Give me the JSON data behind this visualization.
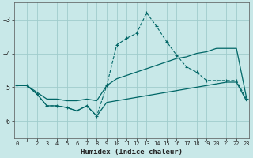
{
  "xlabel": "Humidex (Indice chaleur)",
  "bg_color": "#c8e8e8",
  "grid_color": "#a0cccc",
  "line_color": "#006666",
  "x_ticks": [
    0,
    1,
    2,
    3,
    4,
    5,
    6,
    7,
    8,
    9,
    10,
    11,
    12,
    13,
    14,
    15,
    16,
    17,
    18,
    19,
    20,
    21,
    22,
    23
  ],
  "y_ticks": [
    -6,
    -5,
    -4,
    -3
  ],
  "ylim": [
    -6.5,
    -2.5
  ],
  "xlim": [
    -0.3,
    23.3
  ],
  "line_dashed_markers_x": [
    0,
    1,
    2,
    3,
    4,
    5,
    6,
    7,
    8,
    9,
    10,
    11,
    12,
    13,
    14,
    15,
    16,
    17,
    18,
    19,
    20,
    21,
    22,
    23
  ],
  "line_dashed_markers_y": [
    -4.95,
    -4.95,
    -5.2,
    -5.55,
    -5.55,
    -5.6,
    -5.7,
    -5.55,
    -5.85,
    -4.95,
    -3.75,
    -3.55,
    -3.4,
    -2.8,
    -3.2,
    -3.65,
    -4.05,
    -4.4,
    -4.55,
    -4.8,
    -4.8,
    -4.8,
    -4.8,
    -5.35
  ],
  "line_solid_upper_x": [
    0,
    1,
    2,
    3,
    4,
    5,
    6,
    7,
    8,
    9,
    10,
    11,
    12,
    13,
    14,
    15,
    16,
    17,
    18,
    19,
    20,
    21,
    22,
    23
  ],
  "line_solid_upper_y": [
    -4.95,
    -4.95,
    -5.15,
    -5.35,
    -5.35,
    -5.4,
    -5.4,
    -5.35,
    -5.4,
    -4.95,
    -4.75,
    -4.65,
    -4.55,
    -4.45,
    -4.35,
    -4.25,
    -4.15,
    -4.1,
    -4.0,
    -3.95,
    -3.85,
    -3.85,
    -3.85,
    -5.3
  ],
  "line_solid_lower_x": [
    0,
    1,
    2,
    3,
    4,
    5,
    6,
    7,
    8,
    9,
    10,
    11,
    12,
    13,
    14,
    15,
    16,
    17,
    18,
    19,
    20,
    21,
    22,
    23
  ],
  "line_solid_lower_y": [
    -4.95,
    -4.95,
    -5.2,
    -5.55,
    -5.55,
    -5.6,
    -5.7,
    -5.55,
    -5.85,
    -5.45,
    -5.4,
    -5.35,
    -5.3,
    -5.25,
    -5.2,
    -5.15,
    -5.1,
    -5.05,
    -5.0,
    -4.95,
    -4.9,
    -4.85,
    -4.85,
    -5.4
  ],
  "line_dashed2_x": [
    0,
    1,
    2,
    3,
    4,
    5,
    6,
    7,
    8,
    9,
    10,
    11,
    12
  ],
  "line_dashed2_y": [
    -4.95,
    -4.95,
    -5.2,
    -5.55,
    -5.55,
    -5.6,
    -5.7,
    -5.55,
    -5.85,
    -5.45,
    -5.4,
    -5.35,
    -5.3
  ]
}
